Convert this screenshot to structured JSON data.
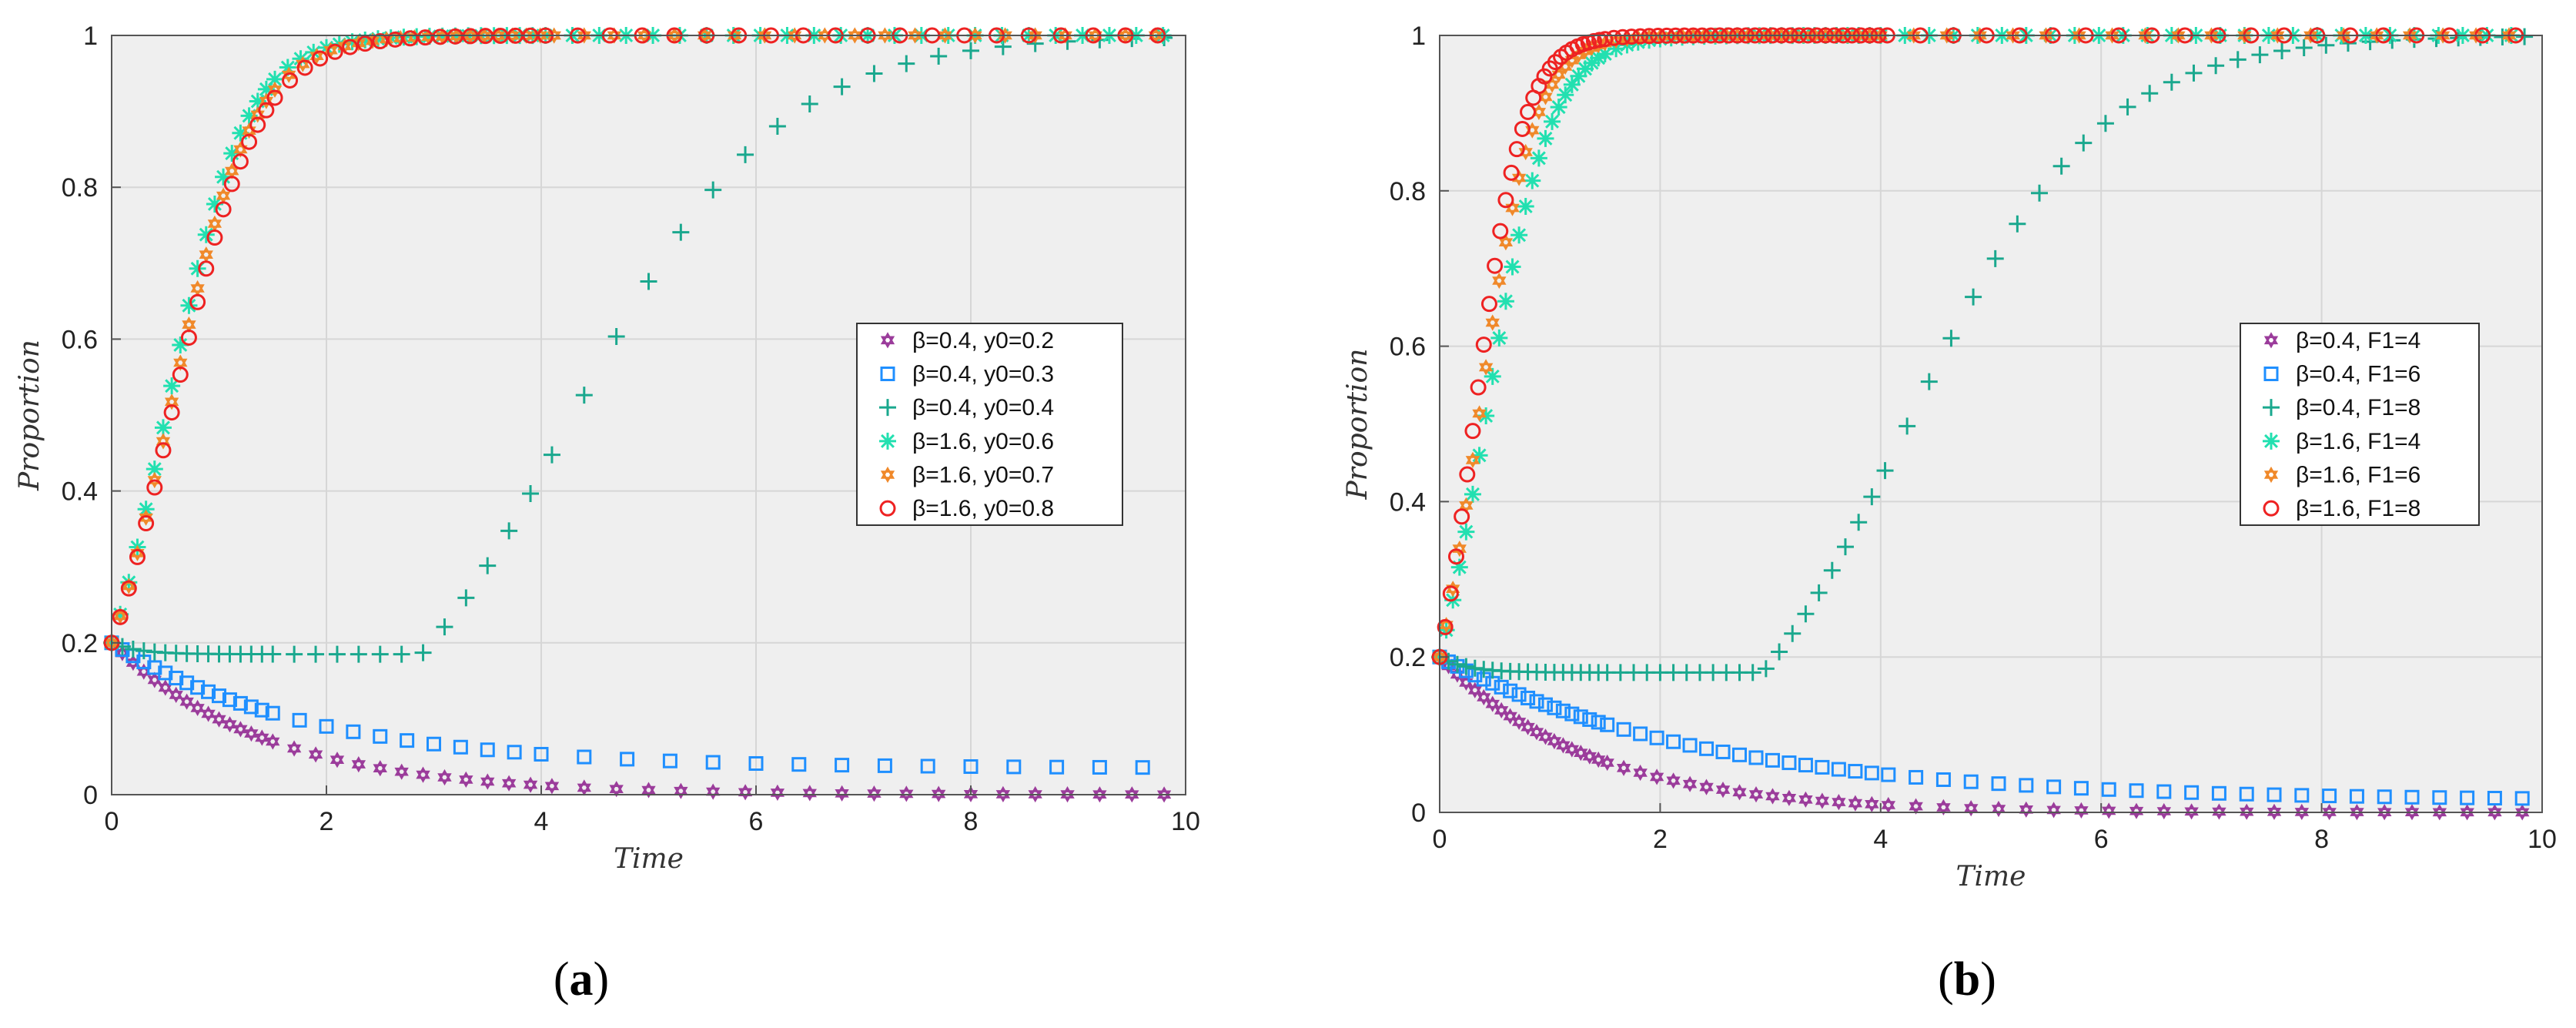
{
  "chart_data": [
    {
      "type": "scatter",
      "caption": "a",
      "title": "",
      "xlabel": "Time",
      "ylabel": "Proportion",
      "xlim": [
        0,
        10
      ],
      "ylim": [
        0,
        1
      ],
      "xticks": [
        "0",
        "2",
        "4",
        "6",
        "8",
        "10"
      ],
      "yticks": [
        "0",
        "0.2",
        "0.4",
        "0.6",
        "0.8",
        "1"
      ],
      "grid": true,
      "legend_position": "center-right",
      "series": [
        {
          "name": "β=0.4, y0=0.2",
          "marker": "hexagram",
          "color": "#9b3c9b",
          "model": {
            "kind": "decay",
            "y0": 0.2,
            "k": 0.7,
            "floor": 0.0
          },
          "sample_dt": [
            0.1,
            0.2,
            0.3
          ]
        },
        {
          "name": "β=0.4, y0=0.3",
          "marker": "square",
          "color": "#1f8fff",
          "model": {
            "kind": "decay",
            "y0": 0.2,
            "k": 0.55,
            "floor": 0.035
          },
          "sample_dt": [
            0.1,
            0.25,
            0.4
          ]
        },
        {
          "name": "β=0.4, y0=0.4",
          "marker": "plus",
          "color": "#1aa88e",
          "model": {
            "kind": "dipgrow",
            "y0": 0.2,
            "ymin": 0.185,
            "t0": 4.3,
            "r": 1.05
          },
          "sample_dt": [
            0.1,
            0.2,
            0.3
          ]
        },
        {
          "name": "β=1.6, y0=0.6",
          "marker": "asterisk",
          "color": "#22e0b0",
          "model": {
            "kind": "logistic",
            "y0": 0.2,
            "r": 2.75
          },
          "sample_dt": [
            0.08,
            0.12,
            0.25
          ]
        },
        {
          "name": "β=1.6, y0=0.7",
          "marker": "hexagram",
          "color": "#f0892a",
          "model": {
            "kind": "logistic",
            "y0": 0.2,
            "r": 2.6
          },
          "sample_dt": [
            0.08,
            0.13,
            0.28
          ]
        },
        {
          "name": "β=1.6, y0=0.8",
          "marker": "circle",
          "color": "#ee2222",
          "model": {
            "kind": "logistic",
            "y0": 0.2,
            "r": 2.5
          },
          "sample_dt": [
            0.08,
            0.14,
            0.3
          ]
        }
      ]
    },
    {
      "type": "scatter",
      "caption": "b",
      "title": "",
      "xlabel": "Time",
      "ylabel": "Proportion",
      "xlim": [
        0,
        10
      ],
      "ylim": [
        0,
        1
      ],
      "xticks": [
        "0",
        "2",
        "4",
        "6",
        "8",
        "10"
      ],
      "yticks": [
        "0",
        "0.2",
        "0.4",
        "0.6",
        "0.8",
        "1"
      ],
      "grid": true,
      "legend_position": "center-right",
      "series": [
        {
          "name": "β=0.4, F1=4",
          "marker": "hexagram",
          "color": "#9b3c9b",
          "model": {
            "kind": "decay",
            "y0": 0.2,
            "k": 0.75,
            "floor": 0.0
          },
          "sample_dt": [
            0.08,
            0.15,
            0.25
          ]
        },
        {
          "name": "β=0.4, F1=6",
          "marker": "square",
          "color": "#1f8fff",
          "model": {
            "kind": "decay",
            "y0": 0.2,
            "k": 0.42,
            "floor": 0.015
          },
          "sample_dt": [
            0.08,
            0.15,
            0.25
          ]
        },
        {
          "name": "β=0.4, F1=8",
          "marker": "plus",
          "color": "#1aa88e",
          "model": {
            "kind": "dipgrow",
            "y0": 0.2,
            "ymin": 0.18,
            "t0": 4.25,
            "r": 1.15
          },
          "sample_dt": [
            0.08,
            0.12,
            0.2
          ]
        },
        {
          "name": "β=1.6, F1=4",
          "marker": "asterisk",
          "color": "#22e0b0",
          "model": {
            "kind": "logistic",
            "y0": 0.2,
            "r": 3.4
          },
          "sample_dt": [
            0.06,
            0.1,
            0.22
          ]
        },
        {
          "name": "β=1.6, F1=6",
          "marker": "hexagram",
          "color": "#f0892a",
          "model": {
            "kind": "logistic",
            "y0": 0.2,
            "r": 4.0
          },
          "sample_dt": [
            0.06,
            0.1,
            0.3
          ]
        },
        {
          "name": "β=1.6, F1=8",
          "marker": "circle",
          "color": "#ee2222",
          "model": {
            "kind": "logistic",
            "y0": 0.2,
            "r": 4.5
          },
          "sample_dt": [
            0.05,
            0.08,
            0.3
          ]
        }
      ]
    }
  ],
  "captions": {
    "a": "(a)",
    "b": "(b)"
  }
}
